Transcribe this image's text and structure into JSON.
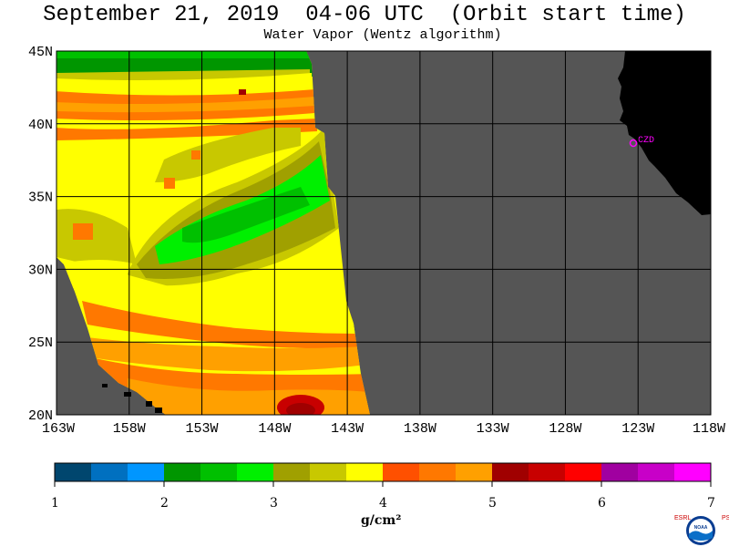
{
  "title": "September 21, 2019  04-06 UTC  (Orbit start time)",
  "subtitle": "Water Vapor (Wentz algorithm)",
  "map": {
    "lat_labels": [
      "45N",
      "40N",
      "35N",
      "30N",
      "25N",
      "20N"
    ],
    "lon_labels": [
      "163W",
      "158W",
      "153W",
      "148W",
      "143W",
      "138W",
      "133W",
      "128W",
      "123W",
      "118W"
    ],
    "station_label": "CZD",
    "colors": {
      "land": "#000000",
      "no_data": "#555555",
      "station": "#ff00ff"
    }
  },
  "colorbar": {
    "colors": [
      "#00466e",
      "#0070c0",
      "#0096ff",
      "#009600",
      "#00c000",
      "#00f000",
      "#a0a000",
      "#c8c800",
      "#ffff00",
      "#ff5000",
      "#ff7800",
      "#ffa000",
      "#a00000",
      "#c80000",
      "#ff0000",
      "#a000a0",
      "#c800c8",
      "#ff00ff"
    ],
    "tick_labels": [
      "1",
      "2",
      "3",
      "4",
      "5",
      "6",
      "7"
    ],
    "unit_label": "g/cm²"
  },
  "logo": {
    "left_letters": "ESRL",
    "right_letters": "PSD",
    "center_text": "NOAA"
  }
}
